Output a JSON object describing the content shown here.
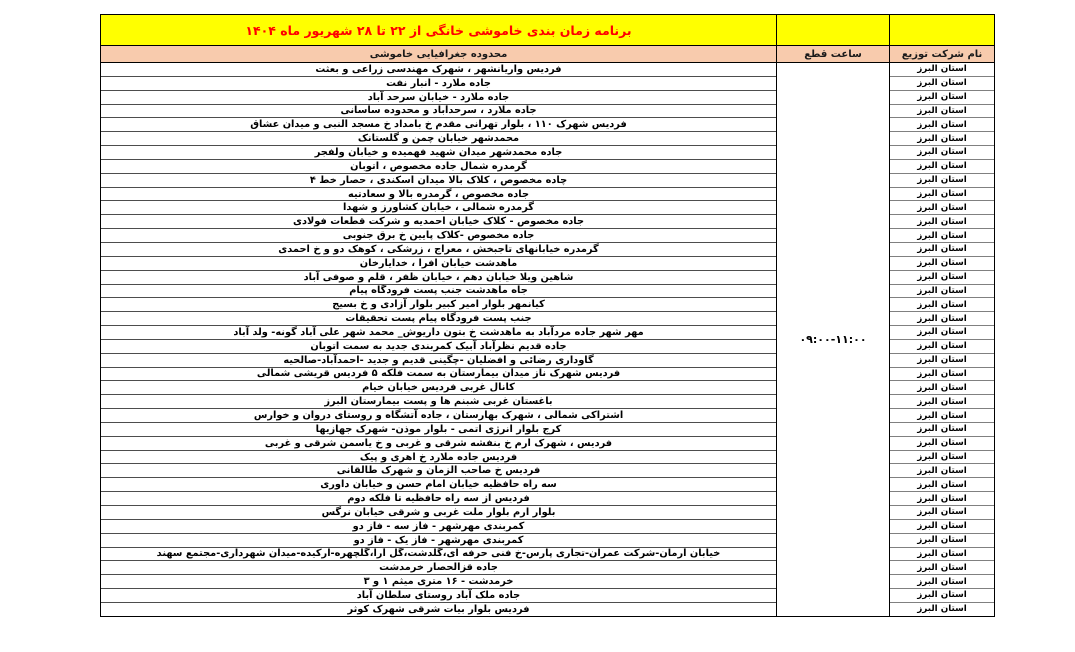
{
  "table": {
    "title": "برنامه زمان بندی خاموشی خانگی از ۲۲ تا ۲۸ شهریور ماه ۱۴۰۴",
    "columns": {
      "area": "محدوده جغرافیایی خاموشی",
      "time": "ساعت قطع",
      "company": "نام شرکت توزیع"
    },
    "outage_time": "۰۹:۰۰-۱۱:۰۰",
    "company_value": "استان البرز",
    "rows": [
      "فردیس واریانشهر ، شهرک مهندسی زراعی و بعثت",
      "جاده ملارد  - انبار نفت",
      "جاده ملارد - خیابان سرحد آباد",
      "جاده ملارد ، سرحدآباد و محدوده ساسانی",
      "فردیس شهرک ۱۱۰ ، بلوار تهرانی مقدم خ بامداد خ مسجد النبی و میدان عشاق",
      "محمدشهر خیابان چمن و گلستانک",
      "جاده محمدشهر میدان شهید فهمیده و خیابان ولفجر",
      "گرمدره شمال جاده مخصوص ، اتوبان",
      "چاده مخصوص ، کلاک بالا میدان اسکندی ، حصار خط ۴",
      "جاده مخصوص ، گرمدره بالا و سعادتیه",
      "گرمدره شمالی ، خیابان کشاورز و شهدا",
      "جاده مخصوص -  کلاک خیابان احمدیه و شرکت قطعات فولادی",
      "جاده مخصوص -کلاک پایین خ برق جنوبی",
      "گرمدره خیابانهای تاجبخش ، معراج ، زرشکی ، کوهک دو و خ احمدی",
      "ماهدشت خیابان افرا ، خدایارخان",
      "شاهین ویلا خیابان دهم ، خیابان ظفر ، قلم  و صوفی آباد",
      "جاه ماهدشت جنب پست فرودگاه پیام",
      "کیانمهر بلوار امیر کبیر بلوار آزادی و خ بسیج",
      "جنب پست فرودگاه پیام پست تحقیقات",
      "مهر شهر جاده مردآباد به ماهدشت خ بتون داریوش_ محمد شهر علی آباد گونه- ولد آباد",
      "جاده قدیم نظرآباد آبیک کمربندی جدید به سمت اتوبان",
      "گاوداری رضائی و افضلیان -چگینی قدیم و جدید -احمدآباد-صالحیه",
      "فردیس شهرک ناز میدان بیمارستان به سمت فلکه ۵ فردیس  قریشی شمالی",
      "کانال غربی فردیس خیابان خیام",
      "باغستان غربی شبنم ها و پست بیمارستان البرز",
      "اشتراکی شمالی ، شهرک بهارستان ، جاده آتشگاه و روستای دروان و خوارس",
      "کرج بلوار انرژی اتمی - بلوار موذن- شهرک جهازیها",
      "فردیس ، شهرک ارم  خ بنفشه شرقی و غربی و خ یاسمن شرقی و غربی",
      "فردیس جاده ملارد خ اهری و  پیک",
      "فردیس  خ صاحب الزمان و شهرک طالقانی",
      "سه راه حافظیه خیابان امام حسن و خیابان داوری",
      "فردیس از سه راه حافظیه تا فلکه دوم",
      "بلوار ارم بلوار ملت غربی و شرقی خیابان نرگس",
      "کمربندی مهرشهر - فاز سه - فاز دو",
      "کمربندی مهرشهر - فاز یک - فاز دو",
      "خیابان آرمان-شرکت عمران-تجاری پارس-خ فنی حرفه ای،گلدشت،گل آرا،گلچهره-ارکیده-میدان شهرداری-مجتمع سهند",
      "جاده قزالحصار خرمدشت",
      "خرمدشت - ۱۶ متری میثم ۱ و ۳",
      "جاده ملک آباد  روستای سلطان آباد",
      "فردیس بلوار بیات شرقی  شهرک کوثر"
    ]
  },
  "colors": {
    "title_bg": "#FFFF00",
    "title_text": "#FF0000",
    "header_bg": "#F8CBAD"
  }
}
